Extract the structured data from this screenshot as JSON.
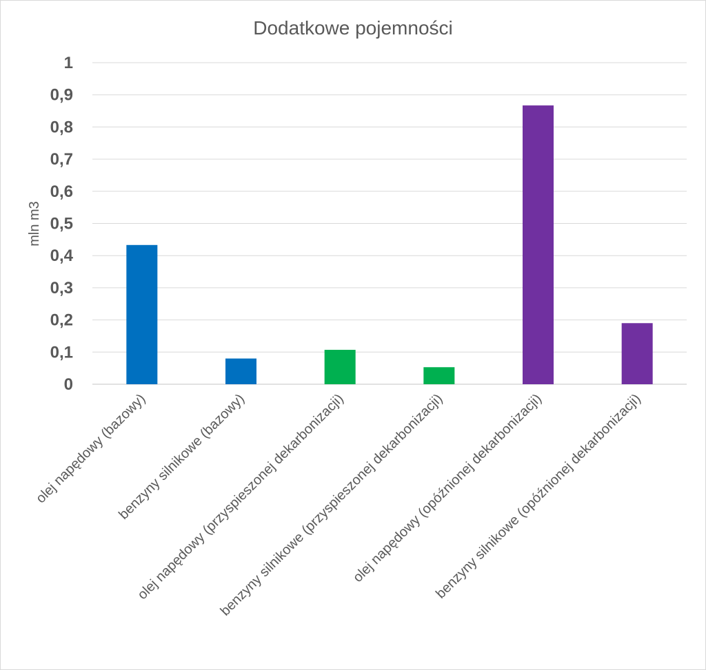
{
  "chart_data": {
    "type": "bar",
    "title": "Dodatkowe pojemności",
    "ylabel": "mln m3",
    "xlabel": "",
    "ylim": [
      0,
      1
    ],
    "yticks": [
      "0",
      "0,1",
      "0,2",
      "0,3",
      "0,4",
      "0,5",
      "0,6",
      "0,7",
      "0,8",
      "0,9",
      "1"
    ],
    "grid": true,
    "categories": [
      "olej napędowy (bazowy)",
      "benzyny silnikowe (bazowy)",
      "olej napędowy (przyspieszonej dekarbonizacji)",
      "benzyny silnikowe (przyspieszonej dekarbonizacji)",
      "olej napędowy (opóźnionej dekarbonizacji)",
      "benzyny silnikowe (opóźnionej dekarbonizacji)"
    ],
    "values": [
      0.433,
      0.08,
      0.107,
      0.053,
      0.867,
      0.19
    ],
    "colors": [
      "#0070C0",
      "#0070C0",
      "#00B050",
      "#00B050",
      "#7030A0",
      "#7030A0"
    ]
  }
}
